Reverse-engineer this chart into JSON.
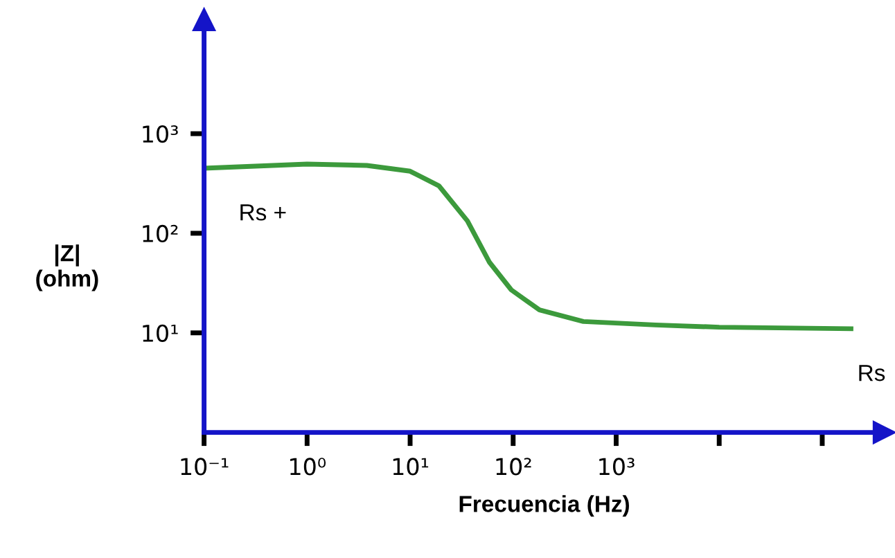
{
  "chart_data": {
    "type": "line",
    "xlabel": "Frecuencia (Hz)",
    "ylabel": "|Z|\n(ohm)",
    "log": "xy",
    "series": [
      {
        "color": "#3c9a3c",
        "x": [
          0.1,
          1,
          3.8,
          10,
          19,
          36,
          59,
          96,
          180,
          480,
          2400,
          10000,
          190000
        ],
        "values": [
          450,
          495,
          480,
          420,
          300,
          133,
          51,
          27,
          17,
          13,
          12,
          11.4,
          11
        ]
      }
    ],
    "xlim": [
      0.1,
      400000
    ],
    "ylim": [
      1,
      14000
    ],
    "xticks": [
      {
        "value": 0.1,
        "label": "10⁻¹"
      },
      {
        "value": 1,
        "label": "10⁰"
      },
      {
        "value": 10,
        "label": "10¹"
      },
      {
        "value": 100,
        "label": "10²"
      },
      {
        "value": 1000,
        "label": "10³"
      },
      {
        "value": 10000,
        "label": null
      },
      {
        "value": 100000,
        "label": null
      }
    ],
    "yticks": [
      {
        "value": 10,
        "label": "10¹"
      },
      {
        "value": 100,
        "label": "10²"
      },
      {
        "value": 1000,
        "label": "10³"
      }
    ],
    "annotations": [
      {
        "text": "Rs +",
        "x": 0.1,
        "y": 450
      },
      {
        "text": "Rs",
        "x": 190000,
        "y": 11
      }
    ],
    "grid": false,
    "legend": false,
    "marker": "none",
    "line_style": "solid"
  }
}
